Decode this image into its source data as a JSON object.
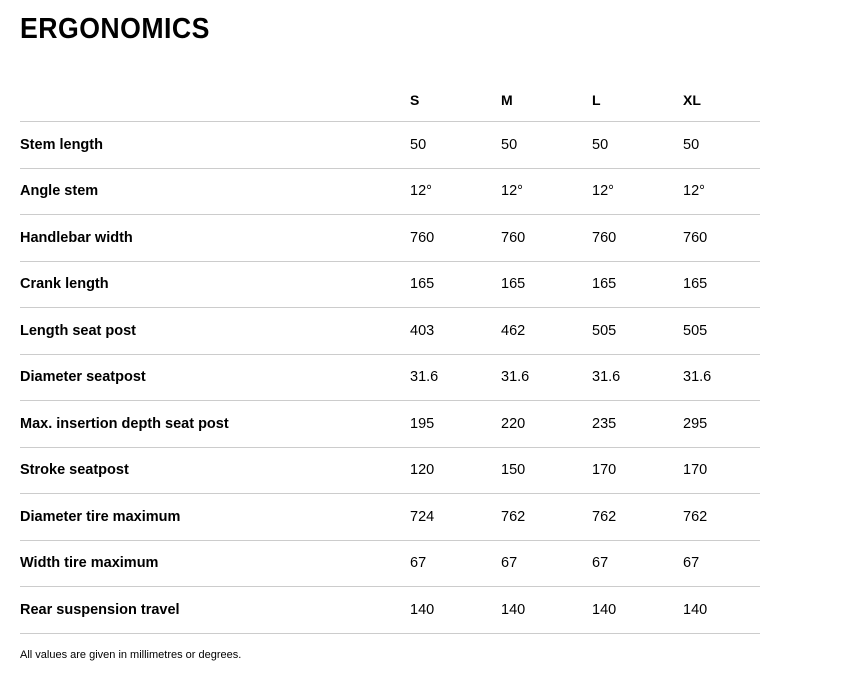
{
  "page": {
    "title": "ERGONOMICS",
    "footnote": "All values are given in millimetres or degrees."
  },
  "colors": {
    "text": "#000000",
    "divider": "#cccccc",
    "background": "#ffffff"
  },
  "table": {
    "columns": [
      "S",
      "M",
      "L",
      "XL"
    ],
    "rows": [
      {
        "label": "Stem length",
        "values": [
          "50",
          "50",
          "50",
          "50"
        ]
      },
      {
        "label": "Angle stem",
        "values": [
          "12°",
          "12°",
          "12°",
          "12°"
        ]
      },
      {
        "label": "Handlebar width",
        "values": [
          "760",
          "760",
          "760",
          "760"
        ]
      },
      {
        "label": "Crank length",
        "values": [
          "165",
          "165",
          "165",
          "165"
        ]
      },
      {
        "label": "Length seat post",
        "values": [
          "403",
          "462",
          "505",
          "505"
        ]
      },
      {
        "label": "Diameter seatpost",
        "values": [
          "31.6",
          "31.6",
          "31.6",
          "31.6"
        ]
      },
      {
        "label": "Max. insertion depth seat post",
        "values": [
          "195",
          "220",
          "235",
          "295"
        ]
      },
      {
        "label": "Stroke seatpost",
        "values": [
          "120",
          "150",
          "170",
          "170"
        ]
      },
      {
        "label": "Diameter tire maximum",
        "values": [
          "724",
          "762",
          "762",
          "762"
        ]
      },
      {
        "label": "Width tire maximum",
        "values": [
          "67",
          "67",
          "67",
          "67"
        ]
      },
      {
        "label": "Rear suspension travel",
        "values": [
          "140",
          "140",
          "140",
          "140"
        ]
      }
    ]
  }
}
